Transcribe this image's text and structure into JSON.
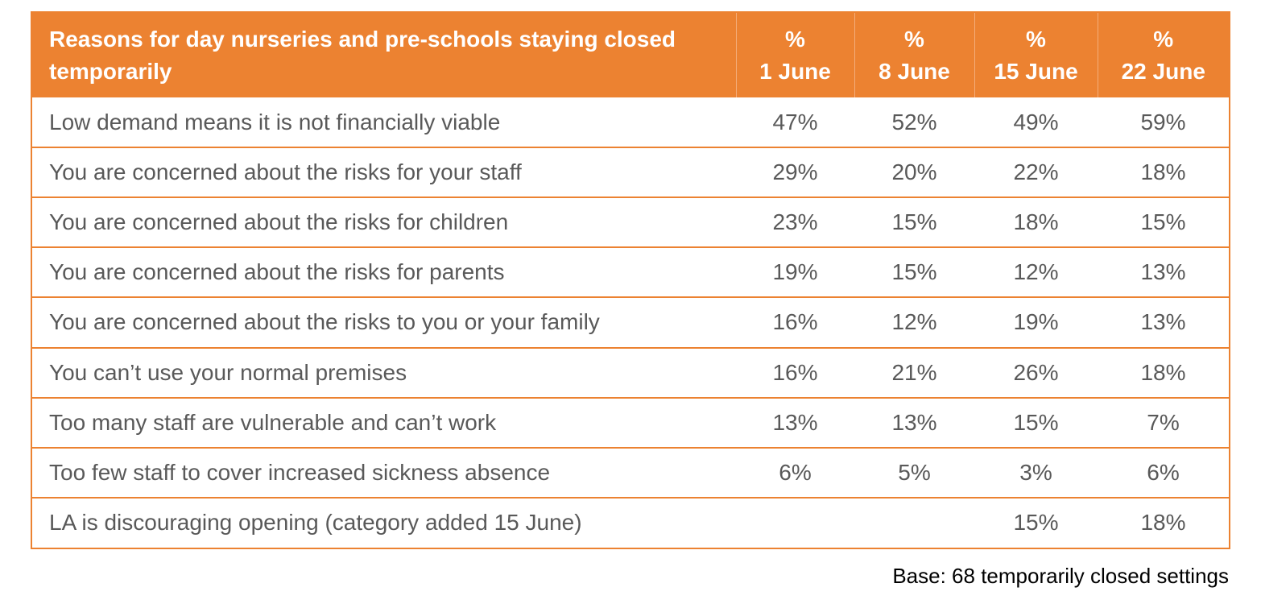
{
  "chart_data": {
    "type": "table",
    "columns": [
      "Reasons for day nurseries and pre-schools staying closed temporarily",
      "% 1 June",
      "% 8 June",
      "% 15 June",
      "% 22 June"
    ],
    "header": {
      "label_line1": "Reasons for day nurseries and pre-schools staying closed",
      "label_line2": "temporarily",
      "dates": [
        {
          "unit": "%",
          "date": "1 June"
        },
        {
          "unit": "%",
          "date": "8 June"
        },
        {
          "unit": "%",
          "date": "15 June"
        },
        {
          "unit": "%",
          "date": "22 June"
        }
      ]
    },
    "rows": [
      {
        "reason": "Low demand means it is not financially viable",
        "values": [
          "47%",
          "52%",
          "49%",
          "59%"
        ]
      },
      {
        "reason": "You are concerned about the risks for your staff",
        "values": [
          "29%",
          "20%",
          "22%",
          "18%"
        ]
      },
      {
        "reason": "You are concerned about the risks for children",
        "values": [
          "23%",
          "15%",
          "18%",
          "15%"
        ]
      },
      {
        "reason": "You are concerned about the risks for parents",
        "values": [
          "19%",
          "15%",
          "12%",
          "13%"
        ]
      },
      {
        "reason": "You are concerned about the risks to you or your family",
        "values": [
          "16%",
          "12%",
          "19%",
          "13%"
        ]
      },
      {
        "reason": "You can’t use your normal premises",
        "values": [
          "16%",
          "21%",
          "26%",
          "18%"
        ]
      },
      {
        "reason": "Too many staff are vulnerable and can’t work",
        "values": [
          "13%",
          "13%",
          "15%",
          "7%"
        ]
      },
      {
        "reason": "Too few staff to cover increased sickness absence",
        "values": [
          "6%",
          "5%",
          "3%",
          "6%"
        ]
      },
      {
        "reason": "LA is discouraging opening (category added 15 June)",
        "values": [
          "",
          "",
          "15%",
          "18%"
        ]
      }
    ],
    "footnote": "Base: 68 temporarily closed settings"
  },
  "colors": {
    "accent": "#ec8231",
    "header_text": "#ffffff",
    "body_text": "#595959",
    "footnote_text": "#000000"
  }
}
